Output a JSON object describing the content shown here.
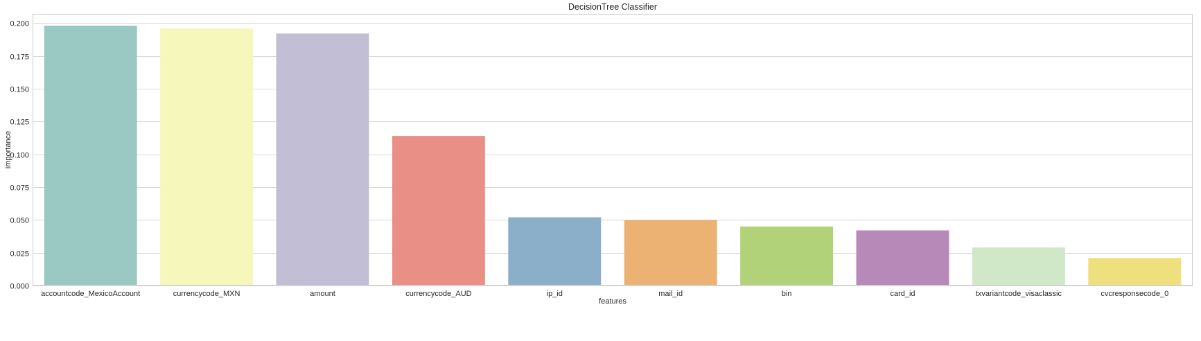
{
  "chart_data": {
    "type": "bar",
    "title": "DecisionTree Classifier",
    "xlabel": "features",
    "ylabel": "importance",
    "categories": [
      "accountcode_MexicoAccount",
      "currencycode_MXN",
      "amount",
      "currencycode_AUD",
      "ip_id",
      "mail_id",
      "bin",
      "card_id",
      "txvariantcode_visaclassic",
      "cvcresponsecode_0"
    ],
    "values": [
      0.198,
      0.196,
      0.192,
      0.114,
      0.052,
      0.05,
      0.045,
      0.042,
      0.029,
      0.021
    ],
    "colors": [
      "#99c9c2",
      "#f5f7bb",
      "#c1bed6",
      "#ea8f85",
      "#8baec9",
      "#ebb273",
      "#b1d278",
      "#b789b8",
      "#d0e7c8",
      "#efe07e"
    ],
    "ylim": [
      0,
      0.207
    ],
    "yticks": [
      "0.000",
      "0.025",
      "0.050",
      "0.075",
      "0.100",
      "0.125",
      "0.150",
      "0.175",
      "0.200"
    ],
    "grid": true,
    "legend": "none"
  }
}
